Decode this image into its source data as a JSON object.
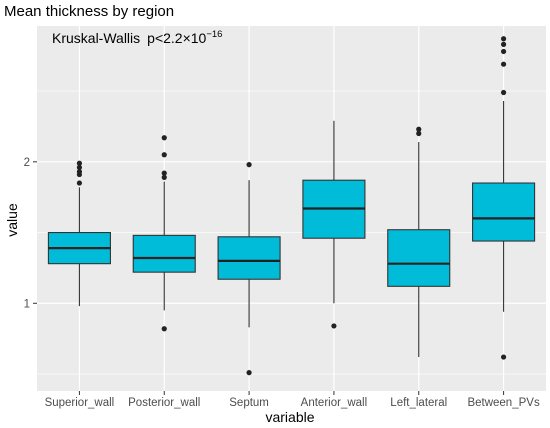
{
  "chart_data": {
    "type": "boxplot",
    "title": "Mean thickness by region",
    "annotation": {
      "method": "Kruskal-Wallis",
      "p_prefix": "p<2.2×10",
      "p_exponent": "−16"
    },
    "xlabel": "variable",
    "ylabel": "value",
    "ylim": [
      0.38,
      2.96
    ],
    "yticks": [
      1,
      2
    ],
    "ytick_labels": [
      "1",
      "2"
    ],
    "grid": true,
    "legend": "none",
    "fill_color": "#00BCD8",
    "background": "#EBEBEB",
    "grid_color": "#FFFFFF",
    "categories": [
      "Superior_wall",
      "Posterior_wall",
      "Septum",
      "Anterior_wall",
      "Left_lateral",
      "Between_PVs"
    ],
    "boxes": [
      {
        "category": "Superior_wall",
        "whisker_low": 0.98,
        "q1": 1.28,
        "median": 1.39,
        "q3": 1.5,
        "whisker_high": 1.82,
        "outliers": [
          1.85,
          1.91,
          1.93,
          1.96,
          1.99
        ]
      },
      {
        "category": "Posterior_wall",
        "whisker_low": 0.95,
        "q1": 1.22,
        "median": 1.32,
        "q3": 1.48,
        "whisker_high": 1.86,
        "outliers": [
          0.82,
          1.89,
          1.92,
          2.05,
          2.17
        ]
      },
      {
        "category": "Septum",
        "whisker_low": 0.83,
        "q1": 1.17,
        "median": 1.3,
        "q3": 1.47,
        "whisker_high": 1.87,
        "outliers": [
          0.51,
          1.98
        ]
      },
      {
        "category": "Anterior_wall",
        "whisker_low": 1.0,
        "q1": 1.46,
        "median": 1.67,
        "q3": 1.87,
        "whisker_high": 2.29,
        "outliers": [
          0.84
        ]
      },
      {
        "category": "Left_lateral",
        "whisker_low": 0.62,
        "q1": 1.12,
        "median": 1.28,
        "q3": 1.52,
        "whisker_high": 2.14,
        "outliers": [
          2.2,
          2.23
        ]
      },
      {
        "category": "Between_PVs",
        "whisker_low": 0.94,
        "q1": 1.44,
        "median": 1.6,
        "q3": 1.85,
        "whisker_high": 2.43,
        "outliers": [
          0.62,
          2.49,
          2.69,
          2.78,
          2.83,
          2.87
        ]
      }
    ]
  }
}
